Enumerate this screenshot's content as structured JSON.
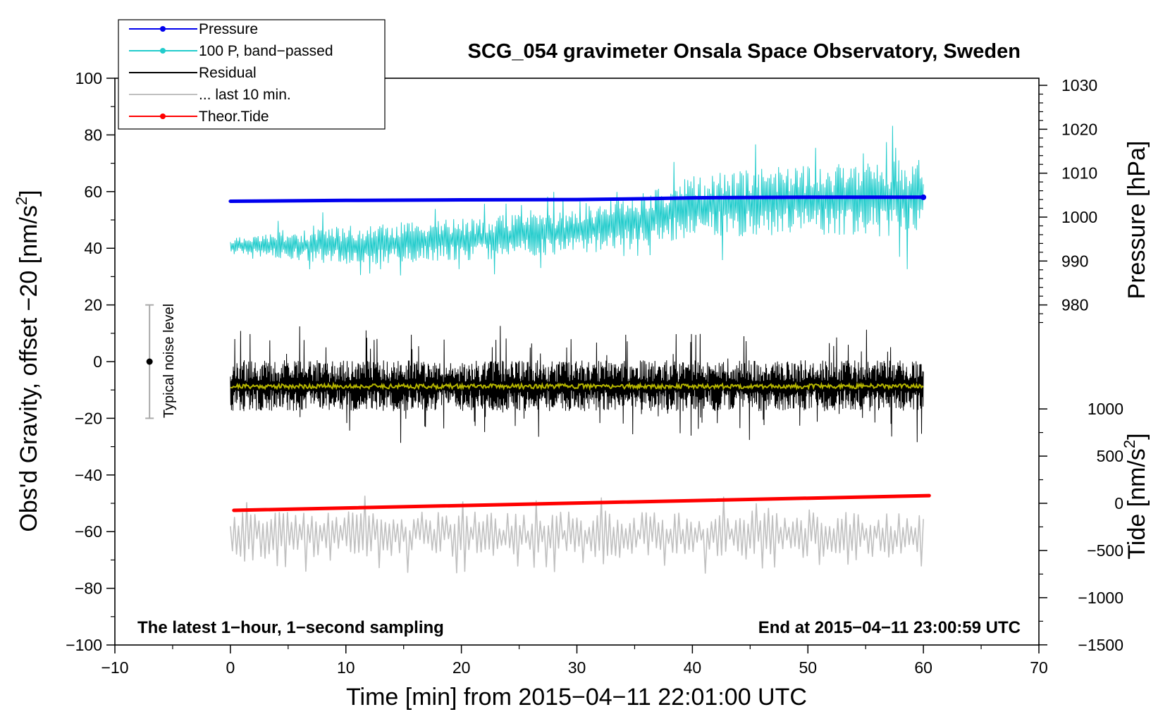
{
  "chart_data": {
    "type": "line",
    "title": "SCG_054 gravimeter Onsala Space Observatory, Sweden",
    "xlabel": "Time [min] from 2015−04−11 22:01:00 UTC",
    "ylabel": "Obs'd Gravity, offset −20 [nm/s²]",
    "ylabel_main": "Obs'd Gravity, offset −20 [nm/s",
    "ylabel_sup": "2",
    "ylabel_end": "]",
    "ylabel_right_pressure": "Pressure [hPa]",
    "ylabel_right_tide": "Tide [nm/s²]",
    "ylabel_right_tide_main": "Tide [nm/s",
    "ylabel_right_tide_sup": "2",
    "ylabel_right_tide_end": "]",
    "xlim": [
      -10,
      70
    ],
    "ylim": [
      -100,
      100
    ],
    "x_ticks": [
      -10,
      0,
      10,
      20,
      30,
      40,
      50,
      60,
      70
    ],
    "x_tick_labels": [
      "−10",
      "0",
      "10",
      "20",
      "30",
      "40",
      "50",
      "60",
      "70"
    ],
    "y_ticks": [
      -100,
      -80,
      -60,
      -40,
      -20,
      0,
      20,
      40,
      60,
      80,
      100
    ],
    "y_tick_labels": [
      "−100",
      "−80",
      "−60",
      "−40",
      "−20",
      "0",
      "20",
      "40",
      "60",
      "80",
      "100"
    ],
    "pressure_ticks": [
      980,
      990,
      1000,
      1010,
      1020,
      1030
    ],
    "pressure_tick_labels": [
      "980",
      "990",
      "1000",
      "1010",
      "1020",
      "1030"
    ],
    "pressure_axis_map": {
      "left_value_at_980": 20,
      "left_units_per_hPa": 1.55
    },
    "tide_ticks": [
      -1500,
      -1000,
      -500,
      0,
      500,
      1000
    ],
    "tide_tick_labels": [
      "−1500",
      "−1000",
      "−500",
      "0",
      "500",
      "1000"
    ],
    "tide_axis_map": {
      "left_value_at_0": -50,
      "left_units_per_unit": 0.0333
    },
    "legend_position": "top-left",
    "legend": [
      {
        "label": "Pressure",
        "color": "#0000ee",
        "marker": true
      },
      {
        "label": "100 P, band−passed",
        "color": "#22cccc",
        "marker": true
      },
      {
        "label": "Residual",
        "color": "#000000",
        "marker": false
      },
      {
        "label": "... last 10 min.",
        "color": "#c0c0c0",
        "marker": false
      },
      {
        "label": "Theor.Tide",
        "color": "#ff0000",
        "marker": true
      }
    ],
    "annotations": {
      "bottom_left": "The latest 1−hour, 1−second sampling",
      "bottom_right": "End at 2015−04−11 23:00:59 UTC",
      "noise_label": "Typical noise level"
    },
    "noise_bar": {
      "x": -7,
      "center": 0,
      "low": -20,
      "high": 20
    },
    "series": [
      {
        "name": "Pressure",
        "color": "#0000ee",
        "x_start": 0,
        "x_end": 60,
        "x": [
          0,
          10,
          20,
          30,
          36,
          40,
          50,
          60
        ],
        "values": [
          56.6,
          56.9,
          57.1,
          57.2,
          57.5,
          57.8,
          58.0,
          58.0
        ]
      },
      {
        "name": "100 P, band−passed",
        "color": "#22cccc",
        "x_start": 0,
        "x_end": 60,
        "center_x": [
          0,
          10,
          20,
          30,
          36,
          40,
          50,
          60
        ],
        "center_y": [
          41,
          41,
          43,
          46,
          50,
          55,
          57,
          58
        ],
        "amp_x": [
          0,
          10,
          30,
          36,
          45,
          60
        ],
        "amp_y": [
          3,
          7,
          8,
          10,
          12,
          14
        ],
        "seed": 7
      },
      {
        "name": "Residual",
        "color": "#000000",
        "x_start": 0,
        "x_end": 60,
        "mean": -8.5,
        "amplitude": 9,
        "seed": 13
      },
      {
        "name": "Residual smoothed",
        "color": "#b5b500",
        "x_start": 0,
        "x_end": 60,
        "mean": -8.7,
        "amplitude": 0.8,
        "seed": 21
      },
      {
        "name": "... last 10 min.",
        "color": "#c0c0c0",
        "x_start": 0,
        "x_end": 60,
        "mean": -61,
        "amplitude": 8,
        "seed": 29
      },
      {
        "name": "Theor.Tide",
        "color": "#ff0000",
        "x_start": 0.3,
        "x_end": 60.5,
        "x": [
          0.3,
          60.5
        ],
        "values": [
          -52.5,
          -47.3
        ]
      }
    ]
  }
}
